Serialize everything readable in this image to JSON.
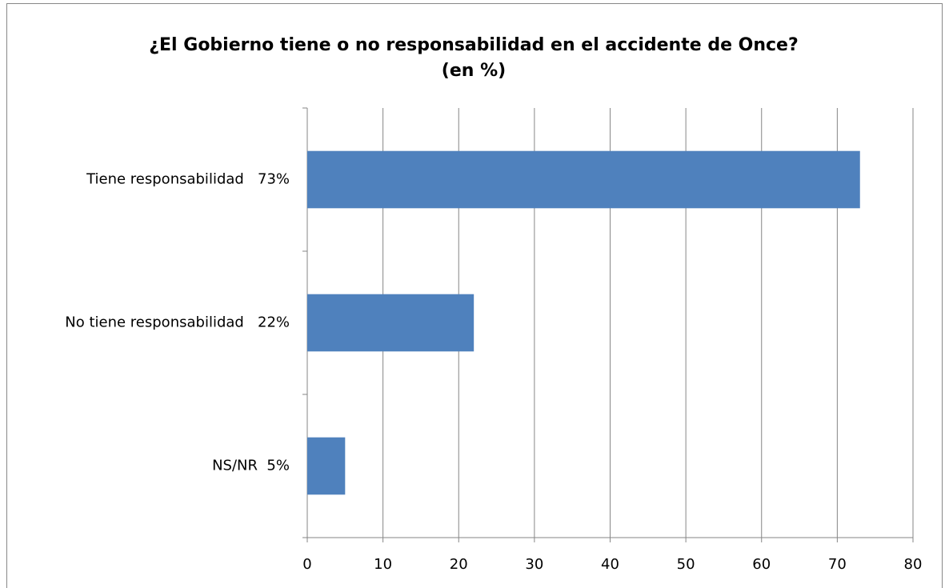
{
  "chart_data": {
    "type": "hbar",
    "title": "¿El Gobierno tiene o no responsabilidad en el accidente de Once?",
    "subtitle": "(en %)",
    "categories": [
      "Tiene responsabilidad   73%",
      "No tiene responsabilidad   22%",
      "NS/NR  5%"
    ],
    "values": [
      73,
      22,
      5
    ],
    "color": "#4f81bd",
    "xlim": [
      0,
      80
    ],
    "xticks": [
      0,
      10,
      20,
      30,
      40,
      50,
      60,
      70,
      80
    ],
    "grid": true
  }
}
